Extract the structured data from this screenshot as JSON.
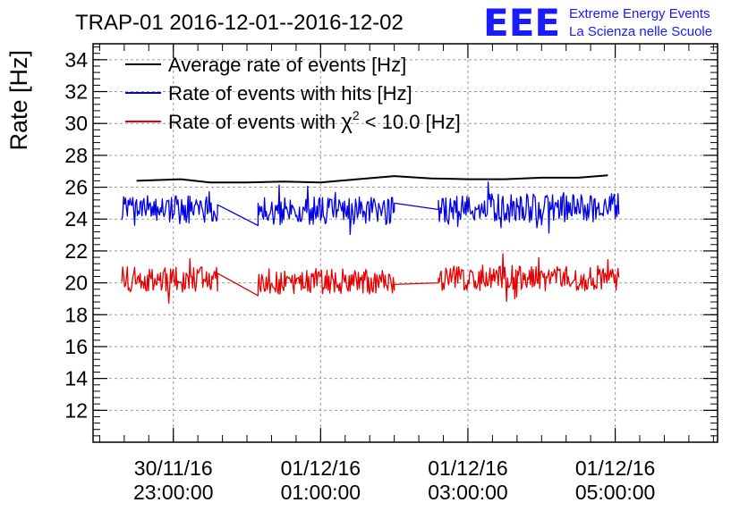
{
  "chart_data": {
    "type": "line",
    "title": "TRAP-01 2016-12-01--2016-12-02",
    "ylabel": "Rate [Hz]",
    "xlabel": "",
    "ylim": [
      10,
      35
    ],
    "x_ticks": [
      {
        "date": "30/11/16",
        "time": "23:00:00",
        "hour": 23
      },
      {
        "date": "01/12/16",
        "time": "01:00:00",
        "hour": 25
      },
      {
        "date": "01/12/16",
        "time": "03:00:00",
        "hour": 27
      },
      {
        "date": "01/12/16",
        "time": "05:00:00",
        "hour": 29
      }
    ],
    "xlim_hours": [
      21.91,
      30.39
    ],
    "y_ticks": [
      12,
      14,
      16,
      18,
      20,
      22,
      24,
      26,
      28,
      30,
      32,
      34
    ],
    "grid": true,
    "legend_position": "top-left",
    "series": [
      {
        "name": "Average rate of events [Hz]",
        "color": "#000000",
        "hours": [
          22.5,
          23.1,
          23.5,
          24.0,
          24.5,
          25.0,
          25.5,
          26.0,
          26.5,
          27.0,
          27.5,
          28.0,
          28.5,
          28.9
        ],
        "values": [
          26.4,
          26.5,
          26.3,
          26.3,
          26.35,
          26.3,
          26.5,
          26.7,
          26.55,
          26.5,
          26.5,
          26.6,
          26.6,
          26.75
        ]
      },
      {
        "name": "Rate of events with hits [Hz]",
        "color": "#0000e6",
        "segments": [
          {
            "start_hour": 22.3,
            "end_hour": 23.6,
            "mean": 24.6,
            "amplitude": 0.9
          },
          {
            "start_hour": 23.6,
            "end_hour": 24.15,
            "points": [
              [
                23.6,
                24.9
              ],
              [
                24.15,
                23.6
              ]
            ]
          },
          {
            "start_hour": 24.15,
            "end_hour": 26.0,
            "mean": 24.5,
            "amplitude": 0.9
          },
          {
            "start_hour": 26.0,
            "end_hour": 26.6,
            "points": [
              [
                26.0,
                25.0
              ],
              [
                26.6,
                24.6
              ]
            ]
          },
          {
            "start_hour": 26.6,
            "end_hour": 29.05,
            "mean": 24.7,
            "amplitude": 0.9
          }
        ]
      },
      {
        "name": "Rate of events with χ² < 10.0 [Hz]",
        "color": "#e60000",
        "segments": [
          {
            "start_hour": 22.3,
            "end_hour": 23.6,
            "mean": 20.2,
            "amplitude": 0.8
          },
          {
            "start_hour": 23.6,
            "end_hour": 24.15,
            "points": [
              [
                23.6,
                20.6
              ],
              [
                24.15,
                19.2
              ]
            ]
          },
          {
            "start_hour": 24.15,
            "end_hour": 26.0,
            "mean": 20.1,
            "amplitude": 0.8
          },
          {
            "start_hour": 26.0,
            "end_hour": 26.6,
            "points": [
              [
                26.0,
                19.9
              ],
              [
                26.6,
                20.0
              ]
            ]
          },
          {
            "start_hour": 26.6,
            "end_hour": 29.05,
            "mean": 20.3,
            "amplitude": 0.8
          }
        ]
      }
    ]
  },
  "legend": {
    "average_label": "Average rate of events [Hz]",
    "hits_label": "Rate of events with hits [Hz]",
    "chi2_label_prefix": "Rate of events with ",
    "chi2_symbol": "χ",
    "chi2_exponent": "2",
    "chi2_label_suffix": " < 10.0 [Hz]"
  },
  "branding": {
    "logo": "EEE",
    "line1": "Extreme Energy Events",
    "line2": "La Scienza nelle Scuole",
    "color": "#1a1aff"
  }
}
